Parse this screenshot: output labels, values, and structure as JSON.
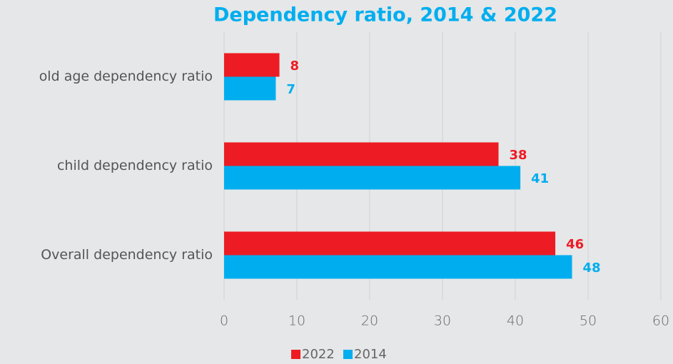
{
  "chart_data": {
    "type": "hbar",
    "title": "Dependency ratio, 2014 & 2022",
    "categories": [
      "old age dependency ratio",
      "child dependency ratio",
      "Overall dependency ratio"
    ],
    "series": [
      {
        "name": "2022",
        "color": "#ed1c24",
        "values": [
          7.6,
          37.7,
          45.5
        ],
        "value_labels": [
          "8",
          "38",
          "46"
        ]
      },
      {
        "name": "2014",
        "color": "#00aeef",
        "values": [
          7.1,
          40.7,
          47.8
        ],
        "value_labels": [
          "7",
          "41",
          "48"
        ]
      }
    ],
    "xlim": [
      0,
      60
    ],
    "xticks": [
      0,
      10,
      20,
      30,
      40,
      50,
      60
    ],
    "grid": true,
    "legend": "bottom"
  }
}
